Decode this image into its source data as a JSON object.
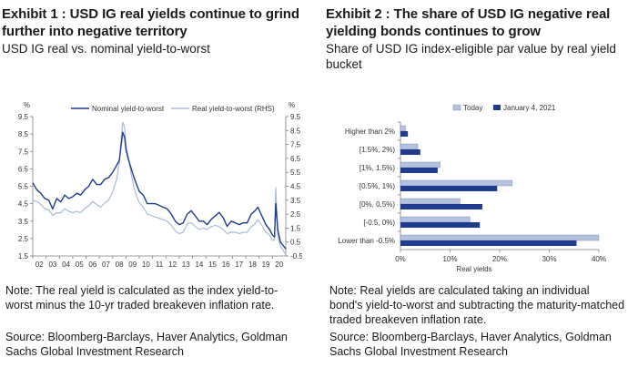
{
  "exhibit1": {
    "title": "Exhibit 1 : USD IG real yields continue to grind further into negative territory",
    "subtitle": "USD IG real vs. nominal yield-to-worst",
    "note": "Note: The real yield is calculated as the index yield-to-worst minus the 10-yr traded breakeven inflation rate.",
    "source": "Source: Bloomberg-Barclays, Haver Analytics, Goldman Sachs Global Investment Research"
  },
  "exhibit2": {
    "title": "Exhibit 2 : The share of USD IG negative real yielding bonds continues to grow",
    "subtitle": "Share of USD IG index-eligible par value by real yield bucket",
    "note": "Note: Real yields are calculated taking an individual bond's yield-to-worst and subtracting the maturity-matched traded breakeven inflation rate.",
    "source": "Source: Bloomberg-Barclays, Haver Analytics, Goldman Sachs Global Investment Research"
  },
  "colors": {
    "nominal": "#1f3b8c",
    "real": "#a9bcd8",
    "today": "#b4c2e0",
    "jan": "#1f3b8c",
    "axis": "#7f7f7f"
  },
  "chart_data": [
    {
      "type": "line",
      "left_axis_unit": "%",
      "right_axis_unit": "%",
      "x_ticks": [
        "02",
        "03",
        "04",
        "05",
        "06",
        "07",
        "08",
        "09",
        "10",
        "11",
        "12",
        "13",
        "14",
        "15",
        "16",
        "17",
        "18",
        "19",
        "20"
      ],
      "y_left_ticks": [
        "1.5",
        "2.5",
        "3.5",
        "4.5",
        "5.5",
        "6.5",
        "7.5",
        "8.5",
        "9.5"
      ],
      "y_right_ticks": [
        "-0.5",
        "0.5",
        "1.5",
        "2.5",
        "3.5",
        "4.5",
        "5.5",
        "6.5",
        "7.5",
        "8.5",
        "9.5"
      ],
      "ylim_left": [
        1.5,
        9.5
      ],
      "ylim_right": [
        -0.5,
        9.5
      ],
      "xlim": [
        2002.0,
        2021.0
      ],
      "legend_placement": "top",
      "grid": false,
      "series": [
        {
          "name": "Nominal yield-to-worst",
          "axis": "left",
          "x": [
            2002.0,
            2002.3,
            2002.6,
            2002.9,
            2003.2,
            2003.5,
            2003.8,
            2004.1,
            2004.4,
            2004.7,
            2005.0,
            2005.3,
            2005.6,
            2005.9,
            2006.2,
            2006.5,
            2006.8,
            2007.1,
            2007.4,
            2007.7,
            2008.0,
            2008.3,
            2008.5,
            2008.75,
            2008.9,
            2009.0,
            2009.2,
            2009.4,
            2009.6,
            2009.8,
            2010.0,
            2010.3,
            2010.6,
            2010.9,
            2011.2,
            2011.5,
            2011.8,
            2012.1,
            2012.4,
            2012.7,
            2013.0,
            2013.3,
            2013.6,
            2013.9,
            2014.2,
            2014.5,
            2014.8,
            2015.1,
            2015.4,
            2015.7,
            2016.0,
            2016.3,
            2016.6,
            2016.9,
            2017.2,
            2017.5,
            2017.8,
            2018.1,
            2018.4,
            2018.7,
            2018.9,
            2019.2,
            2019.5,
            2019.8,
            2020.0,
            2020.15,
            2020.25,
            2020.4,
            2020.6,
            2020.8,
            2021.0
          ],
          "values": [
            5.7,
            5.3,
            5.1,
            4.8,
            4.7,
            4.2,
            4.8,
            4.6,
            5.0,
            4.8,
            4.9,
            5.1,
            5.0,
            5.3,
            5.5,
            5.9,
            5.6,
            5.6,
            5.9,
            6.0,
            6.3,
            6.7,
            7.0,
            8.6,
            8.3,
            7.6,
            7.0,
            6.5,
            6.0,
            5.6,
            5.2,
            5.0,
            4.5,
            4.5,
            4.5,
            4.4,
            4.3,
            4.2,
            3.9,
            3.5,
            3.3,
            3.4,
            3.9,
            4.1,
            3.8,
            3.5,
            3.5,
            3.3,
            3.6,
            3.8,
            4.0,
            3.7,
            3.2,
            3.5,
            3.4,
            3.3,
            3.4,
            3.4,
            3.9,
            4.1,
            4.3,
            3.8,
            3.3,
            3.0,
            2.7,
            2.6,
            4.5,
            3.0,
            2.3,
            2.1,
            1.9
          ]
        },
        {
          "name": "Real yield-to-worst (RHS)",
          "axis": "right",
          "x": [
            2002.0,
            2002.3,
            2002.6,
            2002.9,
            2003.2,
            2003.5,
            2003.8,
            2004.1,
            2004.4,
            2004.7,
            2005.0,
            2005.3,
            2005.6,
            2005.9,
            2006.2,
            2006.5,
            2006.8,
            2007.1,
            2007.4,
            2007.7,
            2008.0,
            2008.3,
            2008.5,
            2008.75,
            2008.9,
            2009.0,
            2009.2,
            2009.4,
            2009.6,
            2009.8,
            2010.0,
            2010.3,
            2010.6,
            2010.9,
            2011.2,
            2011.5,
            2011.8,
            2012.1,
            2012.4,
            2012.7,
            2013.0,
            2013.3,
            2013.6,
            2013.9,
            2014.2,
            2014.5,
            2014.8,
            2015.1,
            2015.4,
            2015.7,
            2016.0,
            2016.3,
            2016.6,
            2016.9,
            2017.2,
            2017.5,
            2017.8,
            2018.1,
            2018.4,
            2018.7,
            2018.9,
            2019.2,
            2019.5,
            2019.8,
            2020.0,
            2020.15,
            2020.25,
            2020.4,
            2020.6,
            2020.8,
            2021.0
          ],
          "values": [
            3.5,
            3.4,
            3.2,
            2.9,
            2.8,
            2.4,
            2.6,
            2.6,
            2.9,
            2.7,
            2.6,
            2.7,
            2.6,
            2.9,
            3.1,
            3.4,
            3.2,
            3.0,
            3.3,
            3.5,
            4.1,
            5.0,
            6.2,
            9.1,
            8.7,
            7.4,
            6.5,
            5.3,
            4.4,
            3.8,
            3.3,
            3.0,
            2.5,
            2.4,
            2.3,
            2.2,
            2.1,
            2.0,
            1.7,
            1.3,
            1.1,
            1.2,
            1.8,
            1.9,
            1.6,
            1.4,
            1.5,
            1.4,
            1.6,
            1.7,
            1.6,
            1.4,
            1.1,
            1.2,
            1.2,
            1.1,
            1.2,
            1.2,
            1.6,
            1.8,
            2.1,
            1.7,
            1.2,
            1.0,
            0.6,
            0.7,
            4.4,
            0.9,
            0.2,
            -0.1,
            -0.4
          ]
        }
      ]
    },
    {
      "type": "bar",
      "orientation": "horizontal",
      "categories": [
        "Higher than 2%",
        "[1.5%, 2%)",
        "[1%, 1.5%)",
        "[0.5%, 1%)",
        "[0%, 0.5%)",
        "[-0.5, 0%)",
        "Lower than -0.5%"
      ],
      "xlabel": "Real yields",
      "x_ticks": [
        "0%",
        "10%",
        "20%",
        "30%",
        "40%"
      ],
      "xlim": [
        0,
        40
      ],
      "legend_placement": "top",
      "series": [
        {
          "name": "Today",
          "values": [
            1.0,
            3.5,
            8.0,
            22.5,
            12.0,
            14.0,
            40.0
          ]
        },
        {
          "name": "January 4, 2021",
          "values": [
            1.5,
            4.0,
            7.5,
            19.5,
            16.5,
            16.0,
            35.5
          ]
        }
      ]
    }
  ]
}
